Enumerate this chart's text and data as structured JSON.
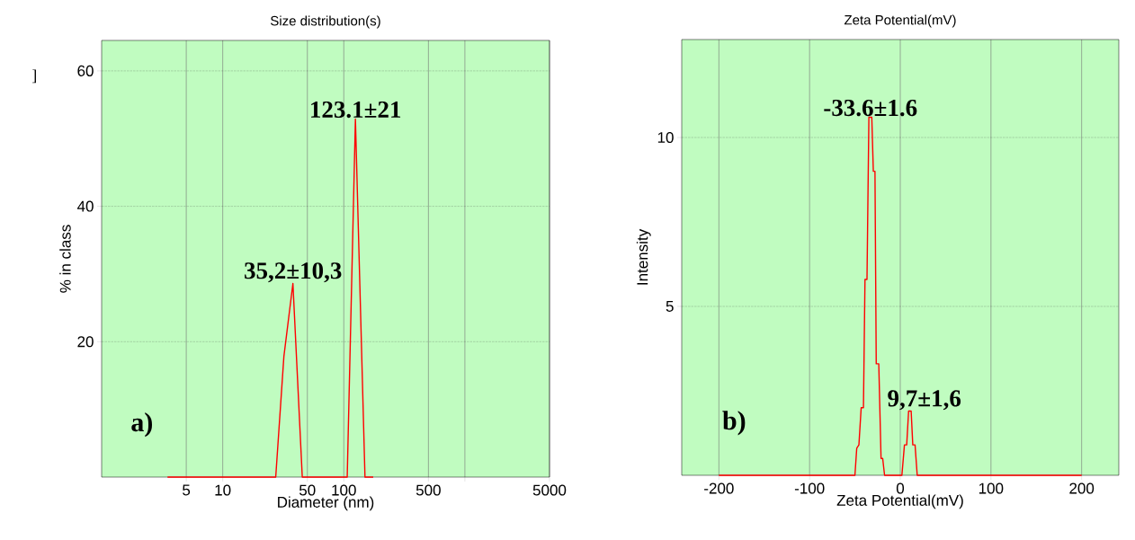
{
  "chart_data": [
    {
      "type": "line",
      "title": "Size distribution(s)",
      "xlabel": "Diameter (nm)",
      "ylabel": "% in class",
      "log": "x",
      "grid": true,
      "xlim": [
        1,
        5000
      ],
      "ylim": [
        0,
        64.5
      ],
      "xticks": [
        5,
        10,
        50,
        100,
        500,
        {
          "value": 1000,
          "label": null
        },
        5000
      ],
      "yticks": [
        20,
        40,
        60
      ],
      "series": [
        {
          "color": "#ff0000",
          "x": [
            3.5,
            27.4,
            32,
            38,
            45.4,
            106.7,
            124.7,
            149.6,
            175
          ],
          "values": [
            0,
            0,
            17.8,
            28.6,
            0,
            0,
            52.9,
            0,
            0
          ]
        }
      ],
      "annotations": [
        "]",
        "a)",
        {
          "text": "35,2±10,3",
          "x": 38,
          "y": 28.6
        },
        {
          "text": "123.1±21",
          "x": 124.7,
          "y": 52.9
        }
      ]
    },
    {
      "type": "line",
      "title": "Zeta Potential(mV)",
      "xlabel": "Zeta Potential(mV)",
      "ylabel": "Intensity",
      "grid": true,
      "xlim": [
        -241,
        241
      ],
      "ylim": [
        0,
        12.9
      ],
      "xticks": [
        -200,
        -100,
        0,
        100,
        200
      ],
      "yticks": [
        5,
        10
      ],
      "series": [
        {
          "color": "#ff0000",
          "x": [
            -200,
            -50,
            -48,
            -45.6,
            -43.1,
            -40.6,
            -38.9,
            -36.7,
            -34.6,
            -31.4,
            -29.7,
            -27.9,
            -26.5,
            -23.7,
            -21.2,
            -19.4,
            -17.3,
            1.8,
            4.6,
            7.1,
            9.2,
            12,
            13.8,
            16.3,
            18.7,
            200
          ],
          "values": [
            0,
            0,
            0.8,
            0.9,
            2.0,
            2.0,
            5.8,
            5.8,
            10.6,
            10.6,
            9.0,
            9.0,
            3.3,
            3.3,
            0.5,
            0.5,
            0,
            0,
            0.9,
            0.9,
            1.9,
            1.9,
            0.9,
            0.9,
            0,
            0
          ]
        }
      ],
      "annotations": [
        "b)",
        {
          "text": "-33.6±1.6",
          "x": -33,
          "y": 10.6
        },
        {
          "text": "9,7±1,6",
          "x": 10.6,
          "y": 1.9
        }
      ]
    }
  ]
}
